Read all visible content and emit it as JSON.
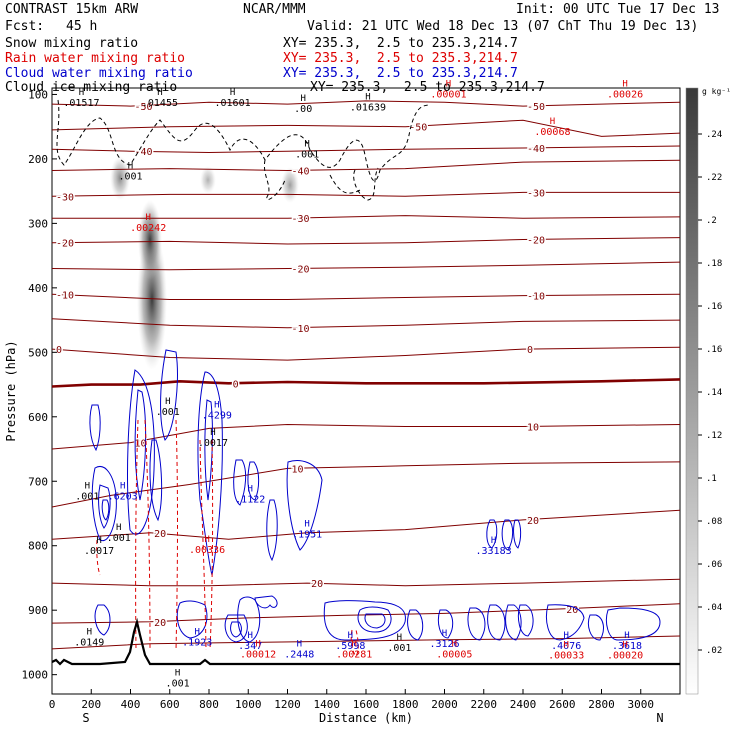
{
  "header": {
    "model": "CONTRAST 15km ARW",
    "center": "NCAR/MMM",
    "init": "Init: 00 UTC Tue 17 Dec 13",
    "fcst_label": "Fcst:",
    "fcst_value": "45 h",
    "valid": "Valid: 21 UTC Wed 18 Dec 13 (07 ChT Thu 19 Dec 13)",
    "fields": [
      {
        "name": "Snow mixing ratio",
        "xy": "XY= 235.3,  2.5 to 235.3,214.7",
        "color": "#000000"
      },
      {
        "name": "Rain water mixing ratio",
        "xy": "XY= 235.3,  2.5 to 235.3,214.7",
        "color": "#dd0000"
      },
      {
        "name": "Cloud water mixing ratio",
        "xy": "XY= 235.3,  2.5 to 235.3,214.7",
        "color": "#0000cc"
      },
      {
        "name": "Cloud ice mixing ratio",
        "xy": "XY= 235.3,  2.5 to 235.3,214.7",
        "color": "#000000"
      }
    ]
  },
  "chart_data": {
    "type": "cross-section contour",
    "xlabel": "Distance (km)",
    "ylabel": "Pressure (hPa)",
    "x_ticks": [
      0,
      200,
      400,
      600,
      800,
      1000,
      1200,
      1400,
      1600,
      1800,
      2000,
      2200,
      2400,
      2600,
      2800,
      3000
    ],
    "xlim": [
      0,
      3200
    ],
    "y_ticks": [
      100,
      200,
      300,
      400,
      500,
      600,
      700,
      800,
      900,
      1000
    ],
    "ylim": [
      1030,
      90
    ],
    "x_end_left": "S",
    "x_end_right": "N",
    "colorbar": {
      "unit": "g kg⁻¹",
      "ticks": [
        ".02",
        ".04",
        ".06",
        ".08",
        ".1",
        ".12",
        ".14",
        ".16",
        ".16",
        ".18",
        ".2",
        ".22",
        ".24"
      ]
    },
    "temperature_contours": [
      {
        "label": "-50",
        "p": [
          [
            0,
            115
          ],
          [
            400,
            118
          ],
          [
            800,
            112
          ],
          [
            1200,
            115
          ],
          [
            1600,
            110
          ],
          [
            2000,
            112
          ],
          [
            2400,
            118
          ],
          [
            2800,
            115
          ],
          [
            3200,
            112
          ]
        ]
      },
      {
        "label": "-50",
        "p": [
          [
            0,
            155
          ],
          [
            600,
            150
          ],
          [
            1200,
            148
          ],
          [
            1800,
            150
          ],
          [
            2400,
            140
          ],
          [
            2800,
            165
          ],
          [
            3200,
            160
          ]
        ]
      },
      {
        "label": "-40",
        "p": [
          [
            0,
            185
          ],
          [
            400,
            188
          ],
          [
            800,
            190
          ],
          [
            1200,
            188
          ],
          [
            1800,
            185
          ],
          [
            2400,
            183
          ],
          [
            3200,
            180
          ]
        ]
      },
      {
        "label": "-40",
        "p": [
          [
            0,
            218
          ],
          [
            600,
            215
          ],
          [
            1200,
            218
          ],
          [
            1800,
            215
          ],
          [
            2400,
            205
          ],
          [
            3200,
            202
          ]
        ]
      },
      {
        "label": "-30",
        "p": [
          [
            0,
            258
          ],
          [
            600,
            255
          ],
          [
            1200,
            255
          ],
          [
            1800,
            258
          ],
          [
            2400,
            252
          ],
          [
            3200,
            252
          ]
        ]
      },
      {
        "label": "-30",
        "p": [
          [
            0,
            292
          ],
          [
            600,
            292
          ],
          [
            1200,
            292
          ],
          [
            1800,
            288
          ],
          [
            2400,
            292
          ],
          [
            3200,
            290
          ]
        ]
      },
      {
        "label": "-20",
        "p": [
          [
            0,
            330
          ],
          [
            600,
            328
          ],
          [
            1200,
            332
          ],
          [
            1800,
            330
          ],
          [
            2400,
            325
          ],
          [
            3200,
            322
          ]
        ]
      },
      {
        "label": "-20",
        "p": [
          [
            0,
            370
          ],
          [
            600,
            372
          ],
          [
            1200,
            370
          ],
          [
            1800,
            368
          ],
          [
            2400,
            365
          ],
          [
            3200,
            360
          ]
        ]
      },
      {
        "label": "-10",
        "p": [
          [
            0,
            410
          ],
          [
            600,
            418
          ],
          [
            1200,
            418
          ],
          [
            1800,
            415
          ],
          [
            2400,
            412
          ],
          [
            3200,
            410
          ]
        ]
      },
      {
        "label": "-10",
        "p": [
          [
            0,
            448
          ],
          [
            600,
            458
          ],
          [
            1200,
            462
          ],
          [
            1800,
            458
          ],
          [
            2400,
            452
          ],
          [
            3200,
            450
          ]
        ]
      },
      {
        "label": "0",
        "p": [
          [
            0,
            495
          ],
          [
            600,
            508
          ],
          [
            1200,
            512
          ],
          [
            1800,
            505
          ],
          [
            2400,
            495
          ],
          [
            3200,
            492
          ]
        ]
      },
      {
        "label": "0",
        "p": [
          [
            0,
            553
          ],
          [
            200,
            550
          ],
          [
            450,
            550
          ],
          [
            650,
            545
          ],
          [
            900,
            548
          ],
          [
            1200,
            546
          ],
          [
            1600,
            548
          ],
          [
            2200,
            548
          ],
          [
            2800,
            545
          ],
          [
            3200,
            542
          ]
        ]
      },
      {
        "label": "10",
        "p": [
          [
            0,
            650
          ],
          [
            400,
            640
          ],
          [
            800,
            618
          ],
          [
            1200,
            612
          ],
          [
            1800,
            615
          ],
          [
            2400,
            615
          ],
          [
            3200,
            612
          ]
        ]
      },
      {
        "label": "10",
        "p": [
          [
            0,
            740
          ],
          [
            300,
            722
          ],
          [
            700,
            705
          ],
          [
            1200,
            680
          ],
          [
            1800,
            676
          ],
          [
            2400,
            672
          ],
          [
            3200,
            670
          ]
        ]
      },
      {
        "label": "20",
        "p": [
          [
            0,
            790
          ],
          [
            500,
            780
          ],
          [
            900,
            790
          ],
          [
            1300,
            780
          ],
          [
            1800,
            775
          ],
          [
            2400,
            760
          ],
          [
            3200,
            745
          ]
        ]
      },
      {
        "label": "20",
        "p": [
          [
            0,
            858
          ],
          [
            500,
            862
          ],
          [
            800,
            862
          ],
          [
            1300,
            858
          ],
          [
            1800,
            862
          ],
          [
            2400,
            858
          ],
          [
            3200,
            852
          ]
        ]
      },
      {
        "label": "20",
        "p": [
          [
            0,
            920
          ],
          [
            500,
            918
          ],
          [
            1000,
            912
          ],
          [
            1500,
            908
          ],
          [
            2000,
            905
          ],
          [
            2600,
            898
          ],
          [
            3200,
            890
          ]
        ]
      },
      {
        "label": "",
        "p": [
          [
            0,
            960
          ],
          [
            500,
            952
          ],
          [
            1000,
            950
          ],
          [
            1500,
            948
          ],
          [
            2000,
            946
          ],
          [
            2600,
            944
          ],
          [
            3200,
            940
          ]
        ]
      }
    ],
    "max_labels": [
      {
        "x": 150,
        "p": 118,
        "text": ".01517"
      },
      {
        "x": 550,
        "p": 118,
        "text": ".01455"
      },
      {
        "x": 920,
        "p": 118,
        "text": ".01601"
      },
      {
        "x": 1280,
        "p": 127,
        "text": ".00"
      },
      {
        "x": 1610,
        "p": 125,
        "text": ".01639"
      },
      {
        "x": 2020,
        "p": 105,
        "text": ".00001"
      },
      {
        "x": 2920,
        "p": 105,
        "text": ".00026"
      },
      {
        "x": 2550,
        "p": 163,
        "text": ".00068"
      },
      {
        "x": 1300,
        "p": 198,
        "text": ".001"
      },
      {
        "x": 400,
        "p": 232,
        "text": ".001"
      },
      {
        "x": 490,
        "p": 312,
        "text": ".00242"
      },
      {
        "x": 840,
        "p": 603,
        "text": ".4299"
      },
      {
        "x": 820,
        "p": 645,
        "text": ".0017"
      },
      {
        "x": 590,
        "p": 597,
        "text": ".001"
      },
      {
        "x": 180,
        "p": 728,
        "text": ".001"
      },
      {
        "x": 360,
        "p": 728,
        "text": ".6203"
      },
      {
        "x": 1010,
        "p": 733,
        "text": ".1122"
      },
      {
        "x": 1300,
        "p": 787,
        "text": ".1951"
      },
      {
        "x": 340,
        "p": 793,
        "text": ".001"
      },
      {
        "x": 240,
        "p": 813,
        "text": ".0017"
      },
      {
        "x": 790,
        "p": 811,
        "text": ".00336"
      },
      {
        "x": 2250,
        "p": 813,
        "text": ".33183"
      },
      {
        "x": 190,
        "p": 955,
        "text": ".0149"
      },
      {
        "x": 740,
        "p": 955,
        "text": ".1923"
      },
      {
        "x": 1010,
        "p": 960,
        "text": ".347"
      },
      {
        "x": 1050,
        "p": 973,
        "text": ".00012"
      },
      {
        "x": 1260,
        "p": 973,
        "text": ".2448"
      },
      {
        "x": 1520,
        "p": 960,
        "text": ".5998"
      },
      {
        "x": 1540,
        "p": 973,
        "text": ".00281"
      },
      {
        "x": 1770,
        "p": 963,
        "text": ".001"
      },
      {
        "x": 2000,
        "p": 957,
        "text": ".3126"
      },
      {
        "x": 2050,
        "p": 973,
        "text": ".00005"
      },
      {
        "x": 2620,
        "p": 960,
        "text": ".4076"
      },
      {
        "x": 2620,
        "p": 975,
        "text": ".00033"
      },
      {
        "x": 2930,
        "p": 960,
        "text": ".3618"
      },
      {
        "x": 2920,
        "p": 975,
        "text": ".00020"
      },
      {
        "x": 640,
        "p": 1018,
        "text": ".001"
      }
    ]
  }
}
